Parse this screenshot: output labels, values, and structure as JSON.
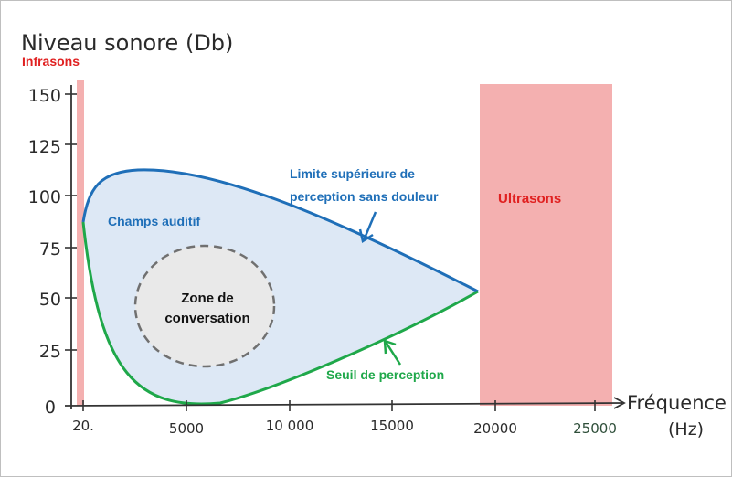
{
  "title": "Niveau sonore (Db)",
  "x_axis_label": "Fréquence",
  "x_axis_unit": "(Hz)",
  "y_ticks": [
    "150",
    "125",
    "100",
    "75",
    "50",
    "25",
    "0"
  ],
  "x_ticks": [
    "20.",
    "5000",
    "10 000",
    "15000",
    "20000",
    "25000"
  ],
  "regions": {
    "infrasons": "Infrasons",
    "ultrasons": "Ultrasons",
    "champs": "Champs auditif",
    "zone_line1": "Zone de",
    "zone_line2": "conversation"
  },
  "curves": {
    "upper_line1": "Limite supérieure de",
    "upper_line2": "perception sans douleur",
    "lower": "Seuil de perception"
  },
  "colors": {
    "upper": "#1f6fb8",
    "lower": "#1fa84a",
    "band": "#f4b0b0",
    "band_text": "#e02020",
    "field": "#dde8f5",
    "zone": "#e9e9e9"
  }
}
